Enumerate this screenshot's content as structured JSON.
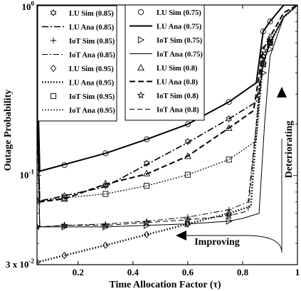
{
  "chart_data": {
    "type": "line",
    "title": "",
    "xlabel": "Time Allocation Factor (τ)",
    "ylabel": "Outage Probability",
    "xscale": "linear",
    "yscale": "log",
    "xlim": [
      0.05,
      1.0
    ],
    "ylim": [
      0.03,
      1.0
    ],
    "x_ticks": [
      "0.2",
      "0.4",
      "0.6",
      "0.8",
      "1"
    ],
    "x_tick_values": [
      0.2,
      0.4,
      0.6,
      0.8,
      1.0
    ],
    "y_ticks": [
      {
        "value": 1.0,
        "base": "10",
        "exp": "0"
      },
      {
        "value": 0.1,
        "base": "10",
        "exp": "-1"
      },
      {
        "value": 0.03,
        "base": "3 x 10",
        "exp": "-2"
      }
    ],
    "annotations": {
      "improving": "Improving",
      "deteriorating": "Deteriorating"
    },
    "legend_placement": "top",
    "series": [
      {
        "name": "LU Sim (0.85)",
        "marker": "hexagram",
        "line": "none",
        "x": [
          0.05,
          0.15,
          0.3,
          0.45,
          0.6,
          0.75,
          0.875,
          0.9
        ],
        "y": [
          0.072,
          0.076,
          0.087,
          0.118,
          0.158,
          0.215,
          0.5,
          0.6
        ]
      },
      {
        "name": "LU Ana (0.85)",
        "marker": "none",
        "line": "dashdot",
        "x": [
          0.05,
          0.06,
          0.15,
          0.3,
          0.45,
          0.6,
          0.75,
          0.85,
          0.875,
          0.9,
          0.95,
          1.0
        ],
        "y": [
          0.3,
          0.071,
          0.076,
          0.086,
          0.116,
          0.156,
          0.215,
          0.27,
          0.45,
          0.6,
          0.85,
          1.0
        ]
      },
      {
        "name": "IoT Sim (0.85)",
        "marker": "plus",
        "line": "none",
        "x": [
          0.05,
          0.15,
          0.3,
          0.45,
          0.6,
          0.75,
          0.875,
          0.9
        ],
        "y": [
          0.05,
          0.051,
          0.052,
          0.054,
          0.057,
          0.063,
          0.45,
          0.6
        ]
      },
      {
        "name": "IoT Ana (0.85)",
        "marker": "none",
        "line": "dashdot-thin",
        "x": [
          0.05,
          0.06,
          0.15,
          0.3,
          0.45,
          0.6,
          0.75,
          0.82,
          0.85,
          0.875,
          0.9,
          0.95,
          1.0
        ],
        "y": [
          0.3,
          0.05,
          0.051,
          0.052,
          0.054,
          0.057,
          0.063,
          0.07,
          0.2,
          0.45,
          0.6,
          0.85,
          1.0
        ]
      },
      {
        "name": "LU Sim (0.95)",
        "marker": "diamond",
        "line": "none",
        "x": [
          0.05,
          0.15,
          0.3,
          0.45,
          0.6,
          0.75,
          0.875,
          0.9
        ],
        "y": [
          0.031,
          0.034,
          0.039,
          0.045,
          0.052,
          0.06,
          0.5,
          0.6
        ]
      },
      {
        "name": "LU Ana (0.95)",
        "marker": "none",
        "line": "dotted-thick",
        "x": [
          0.05,
          0.15,
          0.3,
          0.45,
          0.6,
          0.75,
          0.83,
          0.86,
          0.875,
          0.9,
          0.95,
          1.0
        ],
        "y": [
          0.031,
          0.034,
          0.039,
          0.045,
          0.052,
          0.06,
          0.066,
          0.3,
          0.5,
          0.6,
          0.85,
          1.0
        ]
      },
      {
        "name": "IoT Sim (0.95)",
        "marker": "square",
        "line": "none",
        "x": [
          0.05,
          0.15,
          0.3,
          0.45,
          0.6,
          0.75,
          0.875,
          0.9
        ],
        "y": [
          0.071,
          0.074,
          0.078,
          0.087,
          0.101,
          0.124,
          0.45,
          0.6
        ]
      },
      {
        "name": "IoT Ana (0.95)",
        "marker": "none",
        "line": "dotted",
        "x": [
          0.05,
          0.06,
          0.15,
          0.3,
          0.45,
          0.6,
          0.75,
          0.85,
          0.875,
          0.9,
          0.95,
          1.0
        ],
        "y": [
          0.3,
          0.071,
          0.074,
          0.078,
          0.087,
          0.101,
          0.124,
          0.16,
          0.45,
          0.6,
          0.85,
          1.0
        ]
      },
      {
        "name": "LU Sim (0.75)",
        "marker": "circle",
        "line": "none",
        "x": [
          0.05,
          0.15,
          0.3,
          0.45,
          0.6,
          0.75,
          0.875,
          0.9
        ],
        "y": [
          0.105,
          0.115,
          0.135,
          0.163,
          0.2,
          0.27,
          0.7,
          0.8
        ]
      },
      {
        "name": "LU Ana (0.75)",
        "marker": "none",
        "line": "solid-thick",
        "x": [
          0.05,
          0.06,
          0.15,
          0.3,
          0.45,
          0.6,
          0.75,
          0.85,
          0.875,
          0.9,
          0.95,
          1.0
        ],
        "y": [
          0.5,
          0.106,
          0.116,
          0.135,
          0.163,
          0.2,
          0.27,
          0.35,
          0.7,
          0.8,
          1.0,
          1.0
        ]
      },
      {
        "name": "IoT Sim (0.75)",
        "marker": "triangle-right",
        "line": "none",
        "x": [
          0.05,
          0.15,
          0.3,
          0.45,
          0.6,
          0.75,
          0.875,
          0.9
        ],
        "y": [
          0.05,
          0.05,
          0.05,
          0.051,
          0.052,
          0.054,
          0.4,
          0.55
        ]
      },
      {
        "name": "IoT Ana (0.75)",
        "marker": "none",
        "line": "solid-thin",
        "x": [
          0.05,
          0.06,
          0.15,
          0.3,
          0.45,
          0.6,
          0.75,
          0.8,
          0.83,
          0.86,
          0.88,
          0.9,
          0.95,
          1.0
        ],
        "y": [
          0.25,
          0.05,
          0.05,
          0.05,
          0.051,
          0.052,
          0.054,
          0.056,
          0.058,
          0.06,
          0.2,
          0.5,
          0.85,
          1.0
        ]
      },
      {
        "name": "LU Sim (0.8)",
        "marker": "triangle-up",
        "line": "none",
        "x": [
          0.05,
          0.15,
          0.3,
          0.45,
          0.6,
          0.75,
          0.875,
          0.9
        ],
        "y": [
          0.071,
          0.073,
          0.09,
          0.103,
          0.13,
          0.19,
          0.55,
          0.65
        ]
      },
      {
        "name": "LU Ana (0.8)",
        "marker": "none",
        "line": "dashed-thick",
        "x": [
          0.05,
          0.06,
          0.15,
          0.3,
          0.45,
          0.6,
          0.75,
          0.84,
          0.875,
          0.9,
          0.95,
          1.0
        ],
        "y": [
          0.2,
          0.07,
          0.073,
          0.089,
          0.102,
          0.13,
          0.19,
          0.24,
          0.55,
          0.65,
          0.9,
          1.0
        ]
      },
      {
        "name": "IoT Sim (0.8)",
        "marker": "pentagram",
        "line": "none",
        "x": [
          0.05,
          0.15,
          0.3,
          0.45,
          0.6,
          0.75,
          0.875,
          0.9
        ],
        "y": [
          0.05,
          0.051,
          0.051,
          0.053,
          0.055,
          0.058,
          0.45,
          0.6
        ]
      },
      {
        "name": "IoT Ana (0.8)",
        "marker": "none",
        "line": "dashed-thin",
        "x": [
          0.05,
          0.06,
          0.15,
          0.3,
          0.45,
          0.6,
          0.75,
          0.82,
          0.86,
          0.875,
          0.9,
          0.95,
          1.0
        ],
        "y": [
          0.25,
          0.05,
          0.051,
          0.051,
          0.053,
          0.055,
          0.058,
          0.062,
          0.3,
          0.45,
          0.6,
          0.85,
          1.0
        ]
      }
    ]
  }
}
